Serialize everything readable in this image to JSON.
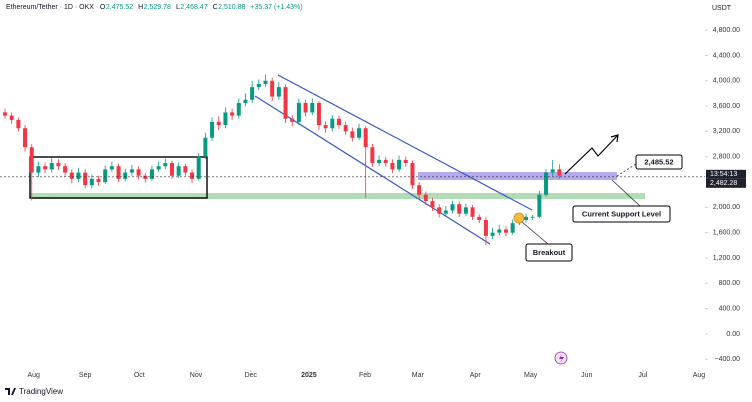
{
  "header": {
    "symbol": "Ethereum/Tether · 1D · OKX",
    "ohlc": [
      {
        "key": "O",
        "value": "2,475.52"
      },
      {
        "key": "H",
        "value": "2,529.78"
      },
      {
        "key": "L",
        "value": "2,468.47"
      },
      {
        "key": "C",
        "value": "2,510.88"
      }
    ],
    "change": "+35.37 (+1.43%)",
    "currency": "USDT"
  },
  "chart_data": {
    "type": "candlestick",
    "open": [
      3500,
      3450,
      3380,
      3250,
      2950,
      2550,
      2650,
      2600,
      2700,
      2650,
      2550,
      2450,
      2550,
      2350,
      2450,
      2400,
      2600,
      2650,
      2450,
      2550,
      2600,
      2500,
      2450,
      2600,
      2650,
      2700,
      2500,
      2650,
      2550,
      2450,
      2800,
      3100,
      3350,
      3300,
      3500,
      3450,
      3650,
      3700,
      3900,
      3950,
      4000,
      3750,
      3900,
      3400,
      3350,
      3650,
      3500,
      3650,
      3300,
      3250,
      3400,
      3300,
      3200,
      3100,
      3250,
      2950,
      2700,
      2750,
      2700,
      2600,
      2750,
      2700,
      2350,
      2200,
      2100,
      2000,
      1900,
      1950,
      2050,
      1900,
      2000,
      1850,
      1800,
      1550,
      1600,
      1650,
      1600,
      1750,
      1800,
      1850,
      1850,
      2200,
      2550,
      2600
    ],
    "high": [
      3560,
      3500,
      3420,
      3300,
      3000,
      2720,
      2710,
      2780,
      2760,
      2700,
      2600,
      2620,
      2600,
      2520,
      2500,
      2660,
      2720,
      2690,
      2610,
      2670,
      2650,
      2540,
      2660,
      2720,
      2770,
      2740,
      2710,
      2690,
      2600,
      2860,
      3180,
      3420,
      3440,
      3580,
      3560,
      3720,
      3800,
      4000,
      4020,
      4100,
      4050,
      3980,
      3940,
      3460,
      3720,
      3700,
      3720,
      3680,
      3360,
      3460,
      3450,
      3350,
      3260,
      3320,
      3280,
      3000,
      2820,
      2800,
      2760,
      2820,
      2800,
      2740,
      2400,
      2250,
      2150,
      2050,
      2020,
      2100,
      2090,
      2060,
      2040,
      1890,
      1840,
      1680,
      1720,
      1700,
      1810,
      1850,
      1900,
      1880,
      2260,
      2600,
      2750,
      2680
    ],
    "low": [
      3400,
      3320,
      3200,
      2880,
      2110,
      2480,
      2540,
      2550,
      2590,
      2480,
      2380,
      2400,
      2300,
      2300,
      2340,
      2370,
      2560,
      2400,
      2410,
      2500,
      2440,
      2390,
      2420,
      2560,
      2600,
      2450,
      2470,
      2500,
      2380,
      2420,
      2760,
      3050,
      3220,
      3250,
      3380,
      3400,
      3600,
      3650,
      3850,
      3900,
      3680,
      3700,
      3330,
      3280,
      3300,
      3440,
      3460,
      3220,
      3180,
      3200,
      3240,
      3140,
      3040,
      3060,
      2150,
      2640,
      2650,
      2640,
      2540,
      2560,
      2640,
      2290,
      2140,
      2040,
      1940,
      1840,
      1860,
      1900,
      1850,
      1860,
      1800,
      1750,
      1400,
      1500,
      1560,
      1540,
      1570,
      1720,
      1760,
      1800,
      1830,
      2170,
      2480,
      2450
    ],
    "close": [
      3450,
      3380,
      3250,
      2950,
      2550,
      2650,
      2600,
      2700,
      2650,
      2550,
      2450,
      2550,
      2350,
      2450,
      2400,
      2600,
      2650,
      2450,
      2550,
      2600,
      2500,
      2450,
      2600,
      2650,
      2700,
      2500,
      2650,
      2550,
      2450,
      2800,
      3100,
      3350,
      3300,
      3500,
      3450,
      3650,
      3700,
      3900,
      3950,
      4000,
      3750,
      3900,
      3400,
      3350,
      3650,
      3500,
      3650,
      3300,
      3250,
      3400,
      3300,
      3200,
      3100,
      3250,
      2950,
      2700,
      2750,
      2700,
      2600,
      2750,
      2700,
      2350,
      2200,
      2100,
      2000,
      1900,
      1950,
      2050,
      1900,
      2000,
      1850,
      1800,
      1550,
      1600,
      1650,
      1600,
      1750,
      1800,
      1850,
      1850,
      2200,
      2550,
      2600,
      2500
    ],
    "up_color": "#089981",
    "down_color": "#f23645",
    "xlim": [
      -0.75,
      104.8
    ],
    "xticks": [
      {
        "value": 4.3,
        "label": "Aug"
      },
      {
        "value": 12.0,
        "label": "Sep"
      },
      {
        "value": 20.1,
        "label": "Oct"
      },
      {
        "value": 28.6,
        "label": "Nov"
      },
      {
        "value": 36.8,
        "label": "Dec"
      },
      {
        "value": 45.5,
        "label": "2025"
      },
      {
        "value": 53.9,
        "label": "Feb"
      },
      {
        "value": 61.8,
        "label": "Mar"
      },
      {
        "value": 70.4,
        "label": "Apr"
      },
      {
        "value": 78.7,
        "label": "May"
      },
      {
        "value": 87.1,
        "label": "Jun"
      },
      {
        "value": 95.5,
        "label": "Jul"
      },
      {
        "value": 103.9,
        "label": "Aug"
      }
    ],
    "ylim": [
      -570,
      5055
    ],
    "yticks": [
      {
        "value": 4800,
        "label": "4,800.00"
      },
      {
        "value": 4400,
        "label": "4,400.00"
      },
      {
        "value": 4000,
        "label": "4,000.00"
      },
      {
        "value": 3600,
        "label": "3,600.00"
      },
      {
        "value": 3200,
        "label": "3,200.00"
      },
      {
        "value": 2800,
        "label": "2,800.00"
      },
      {
        "value": 2000,
        "label": "2,000.00"
      },
      {
        "value": 1600,
        "label": "1,600.00"
      },
      {
        "value": 1200,
        "label": "1,200.00"
      },
      {
        "value": 800,
        "label": "800.00"
      },
      {
        "value": 400,
        "label": "400.00"
      },
      {
        "value": 0,
        "label": "0.00"
      },
      {
        "value": -400,
        "label": "−400.00"
      }
    ],
    "last_price": {
      "value": 2482.28,
      "label": "2,482.28"
    },
    "countdown": "13:54:13"
  },
  "annotations": {
    "level_label": "2,485.52",
    "support_label": "Current Support Level",
    "breakout_label": "Breakout"
  },
  "footer": "TradingView"
}
